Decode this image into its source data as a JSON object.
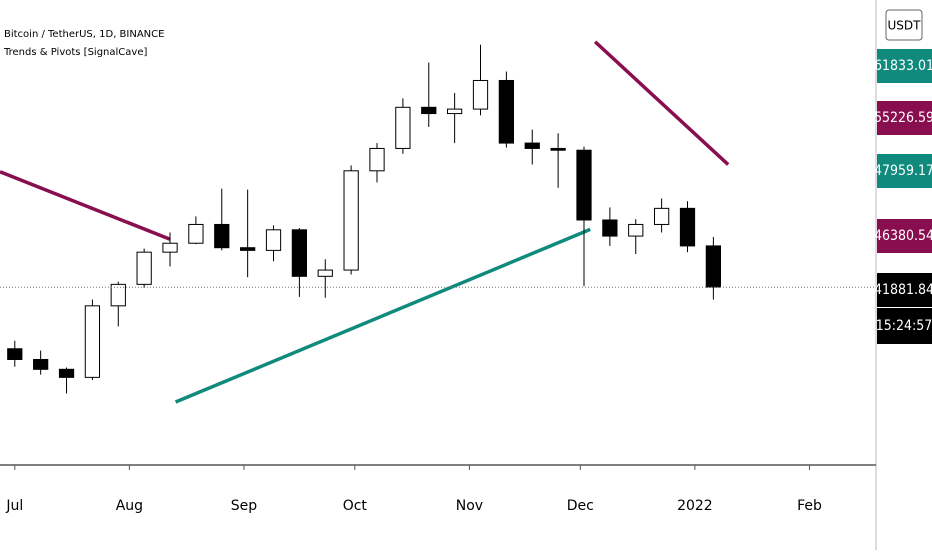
{
  "chart_data": {
    "type": "candlestick",
    "title": "Bitcoin / TetherUS, 1D, BINANCE",
    "subtitle": "Trends & Pivots [SignalCave]",
    "currency": "USDT",
    "xlim": [
      -4,
      233
    ],
    "ylim": [
      22000,
      74000
    ],
    "xticks": [
      {
        "value": 0,
        "label": "Jul"
      },
      {
        "value": 31,
        "label": "Aug"
      },
      {
        "value": 62,
        "label": "Sep"
      },
      {
        "value": 92,
        "label": "Oct"
      },
      {
        "value": 123,
        "label": "Nov"
      },
      {
        "value": 153,
        "label": "Dec"
      },
      {
        "value": 184,
        "label": "2022"
      },
      {
        "value": 215,
        "label": "Feb"
      }
    ],
    "up_color": "#ffffff",
    "down_color": "#000000",
    "outline_color": "#000000",
    "x": [
      0,
      7,
      14,
      21,
      28,
      35,
      42,
      49,
      56,
      63,
      70,
      77,
      84,
      91,
      98,
      105,
      112,
      119,
      126,
      133,
      140,
      147,
      154,
      161,
      168,
      175,
      182,
      189
    ],
    "open": [
      35000,
      33800,
      32700,
      31800,
      39800,
      42200,
      45800,
      46800,
      48900,
      46300,
      46000,
      48300,
      43100,
      43800,
      54900,
      57400,
      62000,
      61300,
      61800,
      65000,
      58000,
      57400,
      57200,
      49400,
      47600,
      48900,
      50700,
      46500
    ],
    "high": [
      35900,
      34800,
      32900,
      40500,
      42500,
      46200,
      48000,
      49800,
      52900,
      52800,
      48800,
      48500,
      45000,
      55500,
      58000,
      63000,
      67000,
      63600,
      69000,
      66000,
      59500,
      59100,
      57600,
      50800,
      49500,
      51800,
      51500,
      47500
    ],
    "low": [
      33000,
      32100,
      30000,
      31500,
      37500,
      41800,
      44200,
      46700,
      46000,
      43000,
      44800,
      40800,
      40700,
      43300,
      53600,
      56800,
      59800,
      58000,
      61100,
      57500,
      55600,
      53000,
      42000,
      46500,
      45600,
      48000,
      45800,
      40500
    ],
    "close": [
      33800,
      32700,
      31800,
      39800,
      42200,
      45800,
      46800,
      48900,
      46300,
      46000,
      48300,
      43100,
      43800,
      54900,
      57400,
      62000,
      61300,
      61800,
      65000,
      58000,
      57400,
      57200,
      49400,
      47600,
      48900,
      50700,
      46500,
      41900
    ],
    "lines": [
      {
        "color": "#880e4f",
        "x": [
          -4,
          42
        ],
        "values": [
          54800,
          47240
        ]
      },
      {
        "color": "#880e4f",
        "x": [
          157,
          193
        ],
        "values": [
          69330,
          55600
        ]
      },
      {
        "color": "#0f8a7d",
        "x": [
          43.5,
          155.7
        ],
        "values": [
          29040,
          48350
        ]
      }
    ],
    "price_tags": [
      {
        "label": "61833.01",
        "value": 61833.01,
        "color": "#0f8a7d"
      },
      {
        "label": "55226.59",
        "value": 55226.59,
        "color": "#880e4f"
      },
      {
        "label": "47959.17",
        "value": 47959.17,
        "color": "#0f8a7d"
      },
      {
        "label": "46380.54",
        "value": 46380.54,
        "color": "#880e4f"
      },
      {
        "label": "41881.84",
        "value": 41881.84,
        "color": "#000000"
      }
    ],
    "countdown": "15:24:57"
  }
}
